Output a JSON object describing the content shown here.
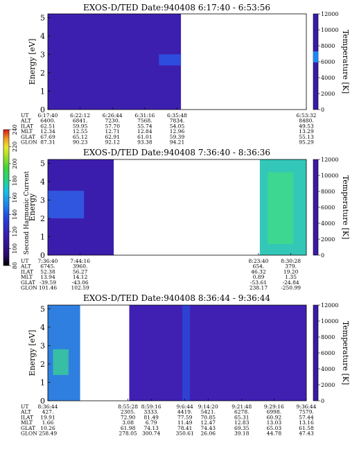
{
  "chart_data": [
    {
      "type": "heatmap",
      "title": "EXOS-D/TED   Date:940408  6:17:40 - 6:53:56",
      "ylabel": "Energy [eV]",
      "ylabel_right": "Temperature [K]",
      "yticks": [
        0,
        1,
        2,
        3,
        4,
        5
      ],
      "ylim": [
        0,
        5.2
      ],
      "yticks_right": [
        0,
        2000,
        4000,
        6000,
        8000,
        10000,
        12000
      ],
      "x_fraction_span": [
        0.0,
        1.0
      ],
      "data_blocks": [
        {
          "x": [
            0.0,
            0.515
          ],
          "level": "low",
          "color": "#3d1fb0"
        }
      ],
      "features": [
        {
          "x": [
            0.43,
            0.515
          ],
          "y": [
            2.4,
            3.0
          ],
          "color": "#2a56e6",
          "note": ""
        }
      ],
      "colorbar_marks": [
        {
          "y": 0.55,
          "color": "#1d86f0"
        }
      ],
      "table_rows": [
        "UT",
        "ALT",
        "ILAT",
        "MLT",
        "GLAT",
        "GLON"
      ],
      "table_cols": [
        {
          "pos": 0.0,
          "values": [
            "6:17:40",
            "6400.",
            "62.51",
            "12.34",
            "67.69",
            "87.31"
          ]
        },
        {
          "pos": 0.125,
          "values": [
            "6:22:12",
            "6841.",
            "59.95",
            "12.55",
            "65.12",
            "90.23"
          ]
        },
        {
          "pos": 0.25,
          "values": [
            "6:26:44",
            "7230.",
            "57.70",
            "12.71",
            "62.91",
            "92.12"
          ]
        },
        {
          "pos": 0.375,
          "values": [
            "6:31:16",
            "7568.",
            "55.74",
            "12.84",
            "61.01",
            "93.38"
          ]
        },
        {
          "pos": 0.5,
          "values": [
            "6:35:48",
            "7834.",
            "54.05",
            "12.96",
            "59.39",
            "94.21"
          ]
        },
        {
          "pos": 1.0,
          "values": [
            "6:53:32",
            "8480.",
            "49.53",
            "13.29",
            "55.13",
            "95.29"
          ]
        }
      ]
    },
    {
      "type": "heatmap",
      "title": "EXOS-D/TED   Date:940408  7:36:40 - 8:36:36",
      "ylabel": "Energy",
      "ylabel_right": "Temperature [K]",
      "yticks": [
        0,
        1,
        2,
        3,
        4,
        5
      ],
      "ylim": [
        0,
        5.2
      ],
      "yticks_right": [
        0,
        2000,
        4000,
        6000,
        8000,
        10000,
        12000
      ],
      "x_fraction_span": [
        0.0,
        1.0
      ],
      "data_blocks": [
        {
          "x": [
            0.0,
            0.255
          ],
          "level": "low",
          "color": "#3b1dae"
        },
        {
          "x": [
            0.82,
            1.0
          ],
          "level": "high",
          "color": "#33c7b8"
        }
      ],
      "features": [
        {
          "x": [
            0.0,
            0.14
          ],
          "y": [
            2.0,
            3.5
          ],
          "color": "#2f5fe8",
          "note": ""
        },
        {
          "x": [
            0.85,
            0.95
          ],
          "y": [
            0.6,
            4.5
          ],
          "color": "#3fd98a",
          "note": ""
        }
      ],
      "colorbar_marks": [],
      "table_rows": [
        "UT",
        "ALT",
        "ILAT",
        "MLT",
        "GLAT",
        "GLON"
      ],
      "table_cols": [
        {
          "pos": 0.0,
          "values": [
            "7:36:40",
            "6745.",
            "52.38",
            "13.94",
            "-39.59",
            "101.46"
          ]
        },
        {
          "pos": 0.125,
          "values": [
            "7:44:16",
            "3960.",
            "56.27",
            "14.12",
            "-43.06",
            "102.59"
          ]
        },
        {
          "pos": 0.815,
          "values": [
            "8:23:40",
            "654.",
            "46.32",
            "0.89",
            "-53.61",
            "238.17"
          ]
        },
        {
          "pos": 0.94,
          "values": [
            "8:30:28",
            "379.",
            "19.20",
            "1.35",
            "-24.84",
            "-250.99"
          ]
        }
      ]
    },
    {
      "type": "heatmap",
      "title": "EXOS-D/TED   Date:940408  8:36:44 - 9:36:44",
      "ylabel": "Energy [eV]",
      "ylabel_right": "Temperature [K]",
      "yticks": [
        0,
        1,
        2,
        3,
        4,
        5
      ],
      "ylim": [
        0,
        5.2
      ],
      "yticks_right": [
        0,
        2000,
        4000,
        6000,
        8000,
        10000,
        12000
      ],
      "x_fraction_span": [
        0.0,
        1.0
      ],
      "data_blocks": [
        {
          "x": [
            0.0,
            0.125
          ],
          "level": "mid",
          "color": "#2f7fe0"
        },
        {
          "x": [
            0.315,
            1.0
          ],
          "level": "low",
          "color": "#3f20b3"
        }
      ],
      "features": [
        {
          "x": [
            0.02,
            0.08
          ],
          "y": [
            1.4,
            2.8
          ],
          "color": "#38c99a",
          "note": ""
        },
        {
          "x": [
            0.52,
            0.55
          ],
          "y": [
            0.0,
            5.2
          ],
          "color": "#2c48d8",
          "note": ""
        }
      ],
      "colorbar_marks": [],
      "table_rows": [
        "UT",
        "ALT",
        "ILAT",
        "MLT",
        "GLAT",
        "GLON"
      ],
      "table_cols": [
        {
          "pos": 0.0,
          "values": [
            "8:36:44",
            "427.",
            "19.91",
            "1.66",
            "10.26",
            "258.49"
          ]
        },
        {
          "pos": 0.31,
          "values": [
            "8:55:28",
            "2305.",
            "72.90",
            "3.08",
            "61.98",
            "278.05"
          ]
        },
        {
          "pos": 0.4,
          "values": [
            "8:59:16",
            "3333.",
            "81.49",
            "6.79",
            "74.13",
            "300.74"
          ]
        },
        {
          "pos": 0.53,
          "values": [
            "9:6:44",
            "4419.",
            "77.59",
            "11.49",
            "78.41",
            "350.61"
          ]
        },
        {
          "pos": 0.62,
          "values": [
            "9:14:20",
            "5421.",
            "70.85",
            "12.47",
            "74.43",
            "26.06"
          ]
        },
        {
          "pos": 0.75,
          "values": [
            "9:21:48",
            "6278.",
            "65.31",
            "12.83",
            "69.35",
            "39.18"
          ]
        },
        {
          "pos": 0.875,
          "values": [
            "9:29:16",
            "6998.",
            "60.92",
            "13.03",
            "65.03",
            "44.78"
          ]
        },
        {
          "pos": 1.0,
          "values": [
            "9:36:44",
            "7579.",
            "57.44",
            "13.16",
            "61.58",
            "47.43"
          ]
        }
      ]
    }
  ],
  "colorscale": {
    "label": "Second Harmonic Current",
    "ticks": [
      80,
      100,
      120,
      140,
      160,
      180,
      200,
      220,
      240
    ],
    "range": [
      80,
      240
    ],
    "colors": [
      "#000000",
      "#2a0a6e",
      "#3a1cae",
      "#2343e0",
      "#1d86f0",
      "#17c3e0",
      "#1ed48a",
      "#3fd63a",
      "#9ee024",
      "#e8e82a",
      "#f0a020",
      "#e85818",
      "#d81818"
    ]
  }
}
